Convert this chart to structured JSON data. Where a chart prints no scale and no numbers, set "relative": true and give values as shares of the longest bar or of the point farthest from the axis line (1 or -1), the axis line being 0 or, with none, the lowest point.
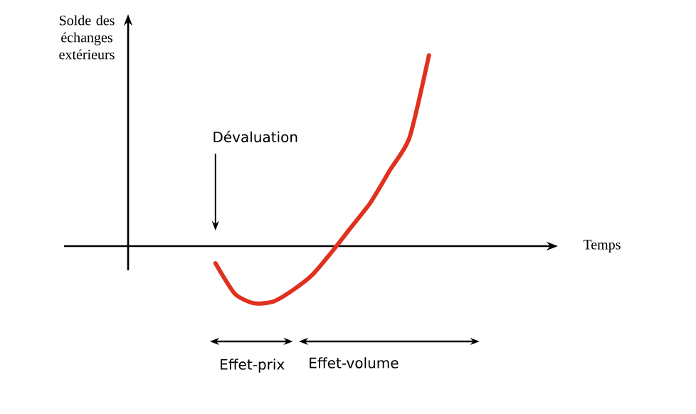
{
  "chart_data": {
    "type": "line",
    "relative": true,
    "xlabel": "Temps",
    "ylabel": "Solde des échanges extérieurs",
    "marker": "none",
    "line_style": "solid",
    "categories": [
      null,
      null,
      null,
      null,
      null,
      null,
      null,
      null,
      null,
      null,
      null,
      null,
      null,
      null,
      null,
      null,
      null,
      null,
      null,
      null,
      null,
      null
    ],
    "series": [
      {
        "color": "#e0301e",
        "values": [
          null,
          null,
          null,
          null,
          -0.09,
          -0.25,
          -0.3,
          -0.29,
          -0.23,
          -0.15,
          -0.03,
          0.1,
          0.23,
          0.4,
          0.57,
          1,
          null,
          null,
          null,
          null,
          null,
          null
        ]
      }
    ],
    "annotations": [
      "Dévaluation",
      "Effet-prix",
      "Effet-volume"
    ]
  }
}
